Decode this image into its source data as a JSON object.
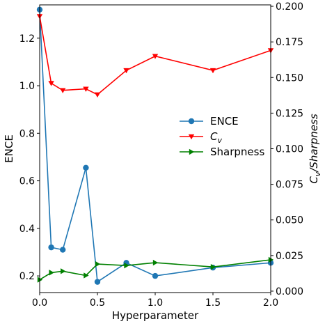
{
  "chart_data": {
    "type": "line",
    "xlabel": "Hyperparameter",
    "ylabel_left": "ENCE",
    "ylabel_right": "C_v/Sharpness",
    "xlim": [
      0.0,
      2.0
    ],
    "ylim_left": [
      0.13,
      1.34
    ],
    "ylim_right": [
      -0.001,
      0.201
    ],
    "grid": false,
    "legend_position": "center-right",
    "x_ticks": [
      0.0,
      0.5,
      1.0,
      1.5,
      2.0
    ],
    "x_tick_labels": [
      "0.0",
      "0.5",
      "1.0",
      "1.5",
      "2.0"
    ],
    "y_left_ticks": [
      0.2,
      0.4,
      0.6,
      0.8,
      1.0,
      1.2
    ],
    "y_left_tick_labels": [
      "0.2",
      "0.4",
      "0.6",
      "0.8",
      "1.0",
      "1.2"
    ],
    "y_right_ticks": [
      0.0,
      0.025,
      0.05,
      0.075,
      0.1,
      0.125,
      0.15,
      0.175,
      0.2
    ],
    "y_right_tick_labels": [
      "0.000",
      "0.025",
      "0.050",
      "0.075",
      "0.100",
      "0.125",
      "0.150",
      "0.175",
      "0.200"
    ],
    "series": [
      {
        "name": "ENCE",
        "axis": "left",
        "color": "#1f77b4",
        "marker": "circle",
        "x": [
          0.0,
          0.1,
          0.2,
          0.4,
          0.5,
          0.75,
          1.0,
          1.5,
          2.0
        ],
        "y": [
          1.32,
          0.32,
          0.31,
          0.655,
          0.175,
          0.255,
          0.2,
          0.235,
          0.255
        ]
      },
      {
        "name": "C_v",
        "axis": "right",
        "color": "#ff0000",
        "marker": "triangle-down",
        "x": [
          0.0,
          0.1,
          0.2,
          0.4,
          0.5,
          0.75,
          1.0,
          1.5,
          2.0
        ],
        "y": [
          0.193,
          0.146,
          0.141,
          0.142,
          0.138,
          0.155,
          0.165,
          0.155,
          0.169
        ]
      },
      {
        "name": "Sharpness",
        "axis": "right",
        "color": "#008000",
        "marker": "triangle-right",
        "x": [
          0.0,
          0.1,
          0.2,
          0.4,
          0.5,
          0.75,
          1.0,
          1.5,
          2.0
        ],
        "y": [
          0.008,
          0.013,
          0.014,
          0.011,
          0.019,
          0.018,
          0.02,
          0.017,
          0.022
        ]
      }
    ]
  }
}
